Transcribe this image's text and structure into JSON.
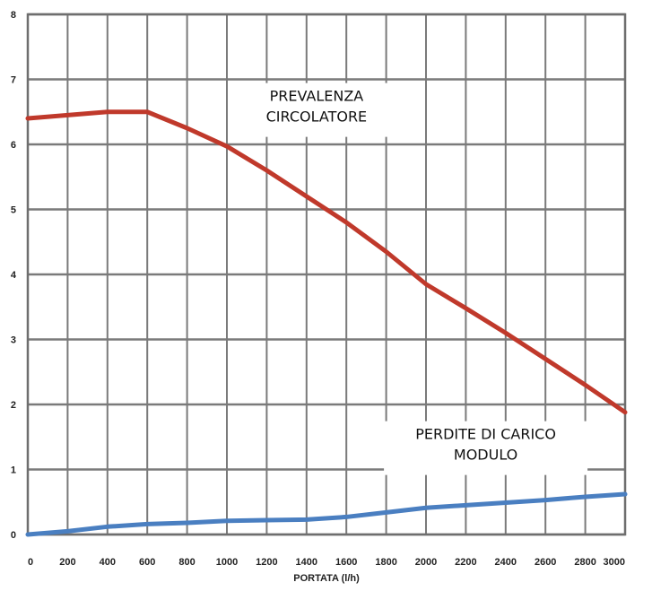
{
  "chart_data": {
    "type": "line",
    "title": "",
    "xlabel": "PORTATA (l/h)",
    "ylabel": "",
    "xlim": [
      0,
      3000
    ],
    "ylim": [
      0,
      8
    ],
    "grid": true,
    "x_ticks": [
      0,
      200,
      400,
      600,
      800,
      1000,
      1200,
      1400,
      1600,
      1800,
      2000,
      2200,
      2400,
      2600,
      2800,
      3000
    ],
    "y_ticks": [
      0,
      1,
      2,
      3,
      4,
      5,
      6,
      7,
      8
    ],
    "series": [
      {
        "color": "#c0392b",
        "points": [
          [
            0,
            6.4
          ],
          [
            200,
            6.45
          ],
          [
            400,
            6.5
          ],
          [
            600,
            6.5
          ],
          [
            800,
            6.25
          ],
          [
            1000,
            5.97
          ],
          [
            1200,
            5.6
          ],
          [
            1400,
            5.2
          ],
          [
            1600,
            4.8
          ],
          [
            1800,
            4.35
          ],
          [
            2000,
            3.85
          ],
          [
            2200,
            3.48
          ],
          [
            2400,
            3.1
          ],
          [
            2600,
            2.7
          ],
          [
            2800,
            2.3
          ],
          [
            3000,
            1.88
          ]
        ]
      },
      {
        "color": "#4a7fc1",
        "points": [
          [
            0,
            0.0
          ],
          [
            200,
            0.05
          ],
          [
            400,
            0.12
          ],
          [
            600,
            0.16
          ],
          [
            800,
            0.18
          ],
          [
            1000,
            0.21
          ],
          [
            1200,
            0.22
          ],
          [
            1400,
            0.23
          ],
          [
            1600,
            0.27
          ],
          [
            1800,
            0.34
          ],
          [
            2000,
            0.41
          ],
          [
            2200,
            0.45
          ],
          [
            2400,
            0.49
          ],
          [
            2600,
            0.53
          ],
          [
            2800,
            0.58
          ],
          [
            3000,
            0.62
          ]
        ]
      }
    ],
    "annotations": [
      {
        "lines": [
          "PREVALENZA",
          "CIRCOLATORE"
        ],
        "x": 1450,
        "y": 6.75
      },
      {
        "lines": [
          "PERDITE DI CARICO",
          "MODULO"
        ],
        "x": 2300,
        "y": 1.55
      }
    ]
  }
}
